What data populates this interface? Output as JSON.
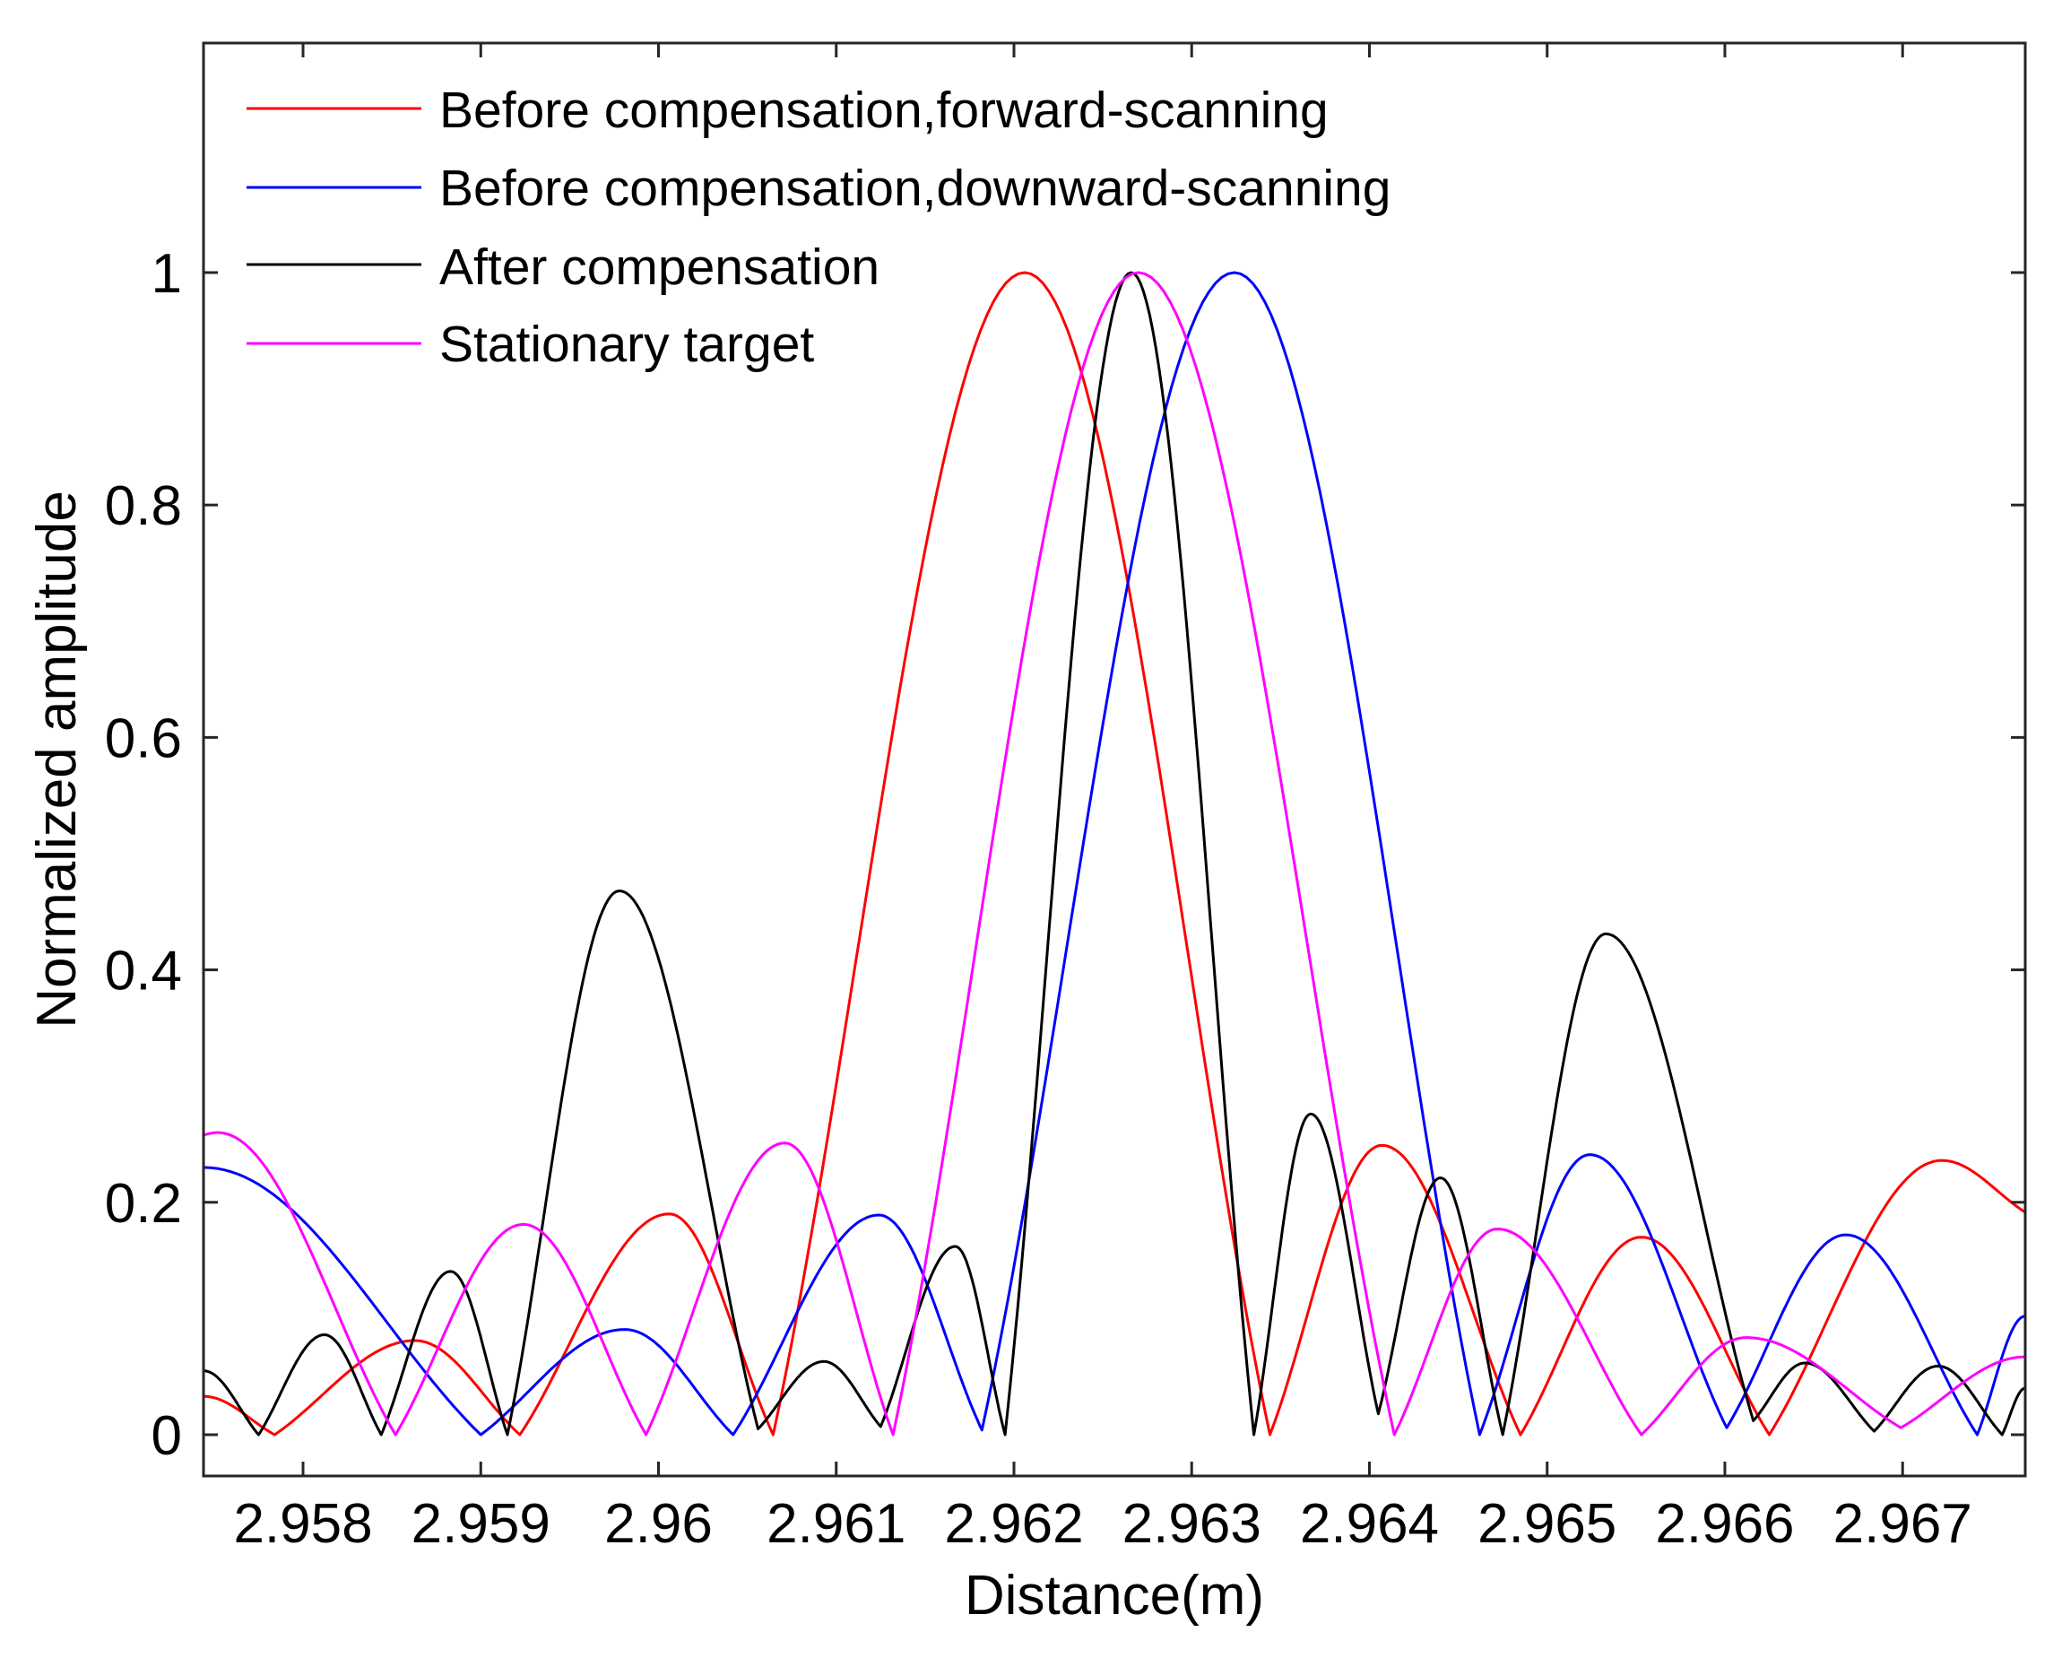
{
  "figure": {
    "x_axis_label": "Distance(m)",
    "y_axis_label": "Normalized amplitude"
  },
  "legend": {
    "position": "upper-left (inside axes)",
    "items": [
      {
        "label": "Before compensation,forward-scanning",
        "color": "#ff0000"
      },
      {
        "label": "Before compensation,downward-scanning",
        "color": "#0000ff"
      },
      {
        "label": "After compensation",
        "color": "#000000"
      },
      {
        "label": "Stationary target",
        "color": "#ff00ff"
      }
    ]
  },
  "chart_data": {
    "type": "line",
    "title": "",
    "xlabel": "Distance(m)",
    "ylabel": "Normalized amplitude",
    "xlim": [
      2.95744,
      2.96769
    ],
    "ylim": [
      -0.0355,
      1.1975
    ],
    "grid": false,
    "box": true,
    "legend_position": "upper-left",
    "x_ticks": [
      2.958,
      2.959,
      2.96,
      2.961,
      2.962,
      2.963,
      2.964,
      2.965,
      2.966,
      2.967
    ],
    "x_tick_labels": [
      "2.958",
      "2.959",
      "2.96",
      "2.961",
      "2.962",
      "2.963",
      "2.964",
      "2.965",
      "2.966",
      "2.967"
    ],
    "y_ticks": [
      0,
      0.2,
      0.4,
      0.6,
      0.8,
      1
    ],
    "y_tick_labels": [
      "0",
      "0.2",
      "0.4",
      "0.6",
      "0.8",
      "1"
    ],
    "series": [
      {
        "name": "Before compensation,forward-scanning",
        "color": "#ff0000",
        "points": [
          [
            2.95744,
            0.033
          ],
          [
            2.95784,
            0
          ],
          [
            2.95863,
            0.081
          ],
          [
            2.95922,
            0
          ],
          [
            2.96006,
            0.19
          ],
          [
            2.960645,
            0
          ],
          [
            2.96206,
            1.0
          ],
          [
            2.96344,
            0
          ],
          [
            2.96407,
            0.249
          ],
          [
            2.96485,
            0
          ],
          [
            2.96553,
            0.17
          ],
          [
            2.96625,
            0
          ],
          [
            2.96722,
            0.236
          ],
          [
            2.96769,
            0.1915
          ]
        ]
      },
      {
        "name": "Before compensation,downward-scanning",
        "color": "#0000ff",
        "points": [
          [
            2.95744,
            0.23
          ],
          [
            2.959,
            0
          ],
          [
            2.95981,
            0.0906
          ],
          [
            2.96042,
            0
          ],
          [
            2.96124,
            0.189
          ],
          [
            2.96182,
            0.004
          ],
          [
            2.96324,
            1.0
          ],
          [
            2.96462,
            0
          ],
          [
            2.96524,
            0.241
          ],
          [
            2.96601,
            0.006
          ],
          [
            2.96668,
            0.172
          ],
          [
            2.96742,
            0
          ],
          [
            2.96769,
            0.102
          ]
        ]
      },
      {
        "name": "After compensation",
        "color": "#000000",
        "points": [
          [
            2.95744,
            0.055
          ],
          [
            2.95775,
            0
          ],
          [
            2.95812,
            0.086
          ],
          [
            2.95844,
            0
          ],
          [
            2.95883,
            0.1405
          ],
          [
            2.95915,
            0
          ],
          [
            2.95978,
            0.468
          ],
          [
            2.96056,
            0.005
          ],
          [
            2.96093,
            0.063
          ],
          [
            2.96125,
            0.007
          ],
          [
            2.96167,
            0.162
          ],
          [
            2.96195,
            0
          ],
          [
            2.96266,
            1.0
          ],
          [
            2.96335,
            0
          ],
          [
            2.96367,
            0.276
          ],
          [
            2.96405,
            0.018
          ],
          [
            2.9644,
            0.221
          ],
          [
            2.96475,
            0
          ],
          [
            2.96533,
            0.431
          ],
          [
            2.96616,
            0.012
          ],
          [
            2.96645,
            0.0617
          ],
          [
            2.96684,
            0.003
          ],
          [
            2.9672,
            0.059
          ],
          [
            2.96756,
            0
          ],
          [
            2.96769,
            0.04
          ]
        ]
      },
      {
        "name": "Stationary target",
        "color": "#ff00ff",
        "points": [
          [
            2.95744,
            0.258
          ],
          [
            2.95752,
            0.26
          ],
          [
            2.95852,
            0
          ],
          [
            2.95924,
            0.181
          ],
          [
            2.95993,
            0
          ],
          [
            2.96071,
            0.251
          ],
          [
            2.96132,
            0
          ],
          [
            2.9627,
            1.0
          ],
          [
            2.96414,
            0
          ],
          [
            2.96472,
            0.177
          ],
          [
            2.96553,
            0
          ],
          [
            2.96612,
            0.0836
          ],
          [
            2.96699,
            0.006
          ],
          [
            2.96769,
            0.067
          ]
        ]
      }
    ]
  }
}
